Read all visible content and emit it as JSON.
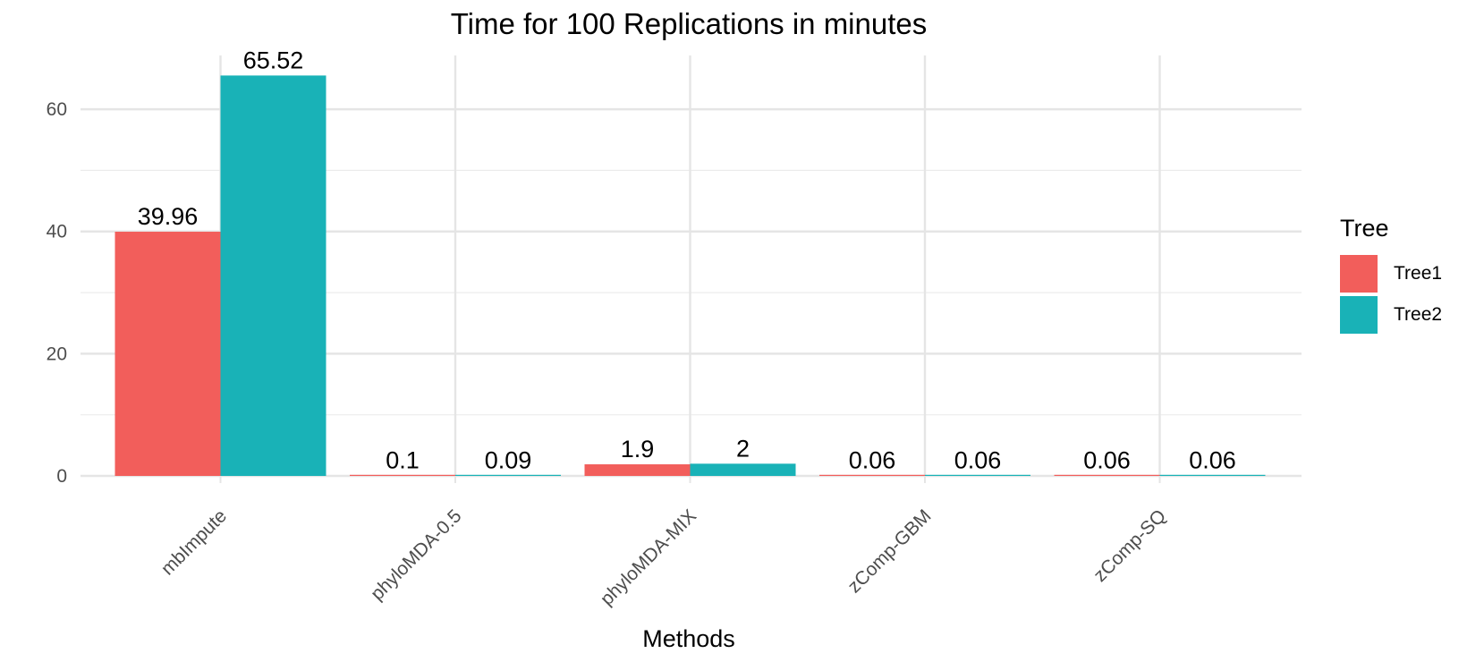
{
  "chart_data": {
    "type": "bar",
    "title": "Time for 100 Replications in minutes",
    "xlabel": "Methods",
    "ylabel": "",
    "categories": [
      "mbImpute",
      "phyloMDA-0.5",
      "phyloMDA-MIX",
      "zComp-GBM",
      "zComp-SQ"
    ],
    "series": [
      {
        "name": "Tree1",
        "color": "#F25E5B",
        "values": [
          39.96,
          0.1,
          1.9,
          0.06,
          0.06
        ],
        "labels": [
          "39.96",
          "0.1",
          "1.9",
          "0.06",
          "0.06"
        ]
      },
      {
        "name": "Tree2",
        "color": "#19B2B7",
        "values": [
          65.52,
          0.09,
          2,
          0.06,
          0.06
        ],
        "labels": [
          "65.52",
          "0.09",
          "2",
          "0.06",
          "0.06"
        ]
      }
    ],
    "y_ticks": [
      0,
      20,
      40,
      60
    ],
    "ylim": [
      0,
      68.8
    ],
    "grid": true,
    "legend": {
      "title": "Tree",
      "position": "right"
    }
  }
}
